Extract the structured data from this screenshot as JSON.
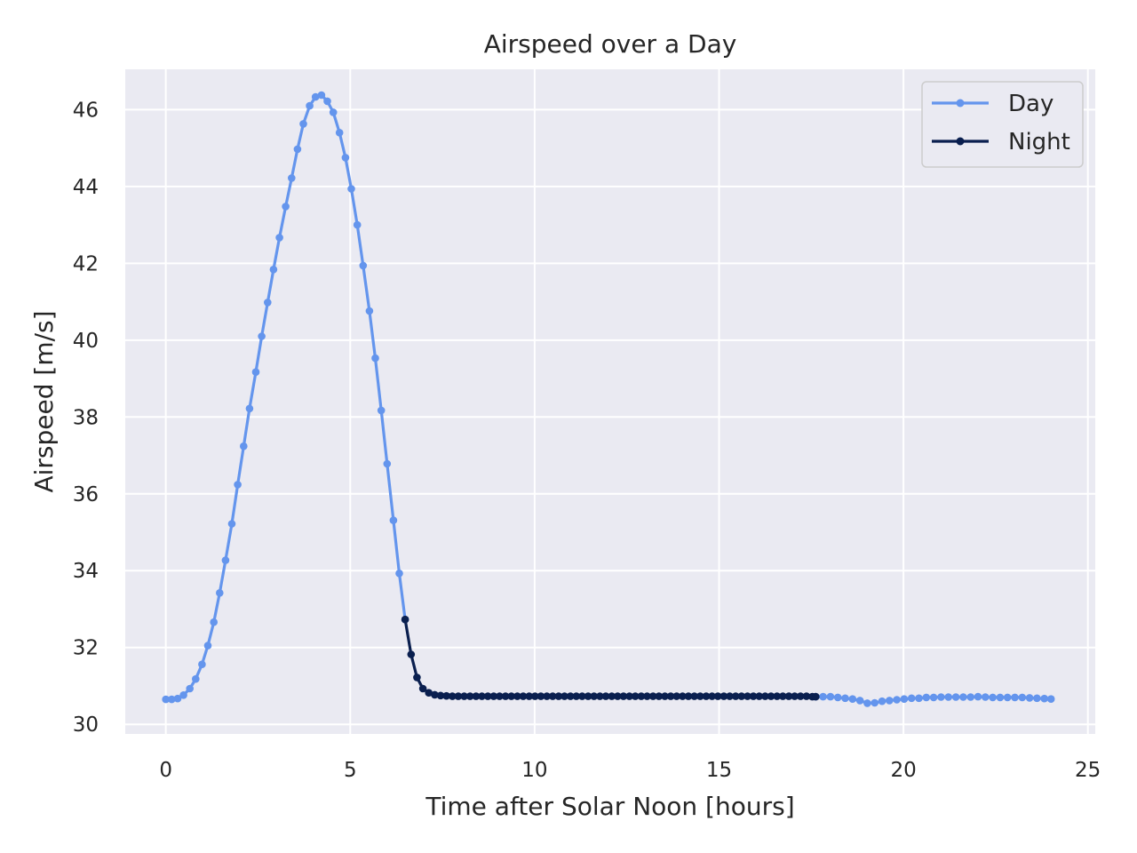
{
  "chart_data": {
    "type": "line",
    "title": "Airspeed over a Day",
    "xlabel": "Time after Solar Noon [hours]",
    "ylabel": "Airspeed [m/s]",
    "xlim": [
      -1.1,
      25.2
    ],
    "ylim": [
      29.75,
      47.05
    ],
    "xticks": [
      0,
      5,
      10,
      15,
      20,
      25
    ],
    "yticks": [
      30,
      32,
      34,
      36,
      38,
      40,
      42,
      44,
      46
    ],
    "grid": true,
    "legend_position": "upper-right",
    "colors": {
      "day": "#6495ED",
      "night": "#0A1F4F",
      "background": "#EAEAF2",
      "grid": "#FFFFFF"
    },
    "series": [
      {
        "name": "Day",
        "segments": [
          {
            "x": [
              0.0,
              0.16,
              0.32,
              0.48,
              0.65,
              0.81,
              0.98,
              1.14,
              1.3,
              1.46,
              1.62,
              1.79,
              1.95,
              2.11,
              2.27,
              2.44,
              2.6,
              2.76,
              2.92,
              3.08,
              3.25,
              3.41,
              3.57,
              3.73,
              3.9,
              4.06,
              4.22,
              4.38,
              4.54,
              4.71,
              4.87,
              5.03,
              5.19,
              5.35,
              5.52,
              5.68,
              5.84,
              6.0,
              6.17,
              6.33,
              6.49
            ],
            "y": [
              30.65,
              30.65,
              30.67,
              30.76,
              30.93,
              31.18,
              31.56,
              32.05,
              32.66,
              33.42,
              34.27,
              35.22,
              36.24,
              37.24,
              38.22,
              39.17,
              40.1,
              40.98,
              41.84,
              42.67,
              43.48,
              44.22,
              44.97,
              45.63,
              46.1,
              46.33,
              46.38,
              46.22,
              45.93,
              45.4,
              44.75,
              43.94,
              43.0,
              41.94,
              40.76,
              39.53,
              38.17,
              36.78,
              35.31,
              33.93,
              32.73
            ]
          },
          {
            "x": [
              17.62,
              17.82,
              18.02,
              18.22,
              18.42,
              18.62,
              18.82,
              19.02,
              19.22,
              19.42,
              19.62,
              19.82,
              20.02,
              20.22,
              20.42,
              20.62,
              20.82,
              21.02,
              21.22,
              21.42,
              21.62,
              21.82,
              22.02,
              22.22,
              22.42,
              22.62,
              22.82,
              23.02,
              23.22,
              23.42,
              23.62,
              23.82,
              24.0
            ],
            "y": [
              30.72,
              30.72,
              30.72,
              30.7,
              30.68,
              30.66,
              30.62,
              30.55,
              30.56,
              30.6,
              30.62,
              30.64,
              30.66,
              30.68,
              30.68,
              30.7,
              30.7,
              30.71,
              30.71,
              30.71,
              30.71,
              30.71,
              30.72,
              30.71,
              30.7,
              30.7,
              30.7,
              30.7,
              30.7,
              30.69,
              30.68,
              30.67,
              30.66
            ]
          }
        ]
      },
      {
        "name": "Night",
        "segments": [
          {
            "x": [
              6.49,
              6.65,
              6.81,
              6.97,
              7.13,
              7.29,
              7.45,
              7.61,
              7.77,
              7.93,
              8.09,
              8.25,
              8.41,
              8.57,
              8.73,
              8.89,
              9.05,
              9.21,
              9.37,
              9.53,
              9.69,
              9.85,
              10.01,
              10.17,
              10.33,
              10.49,
              10.65,
              10.81,
              10.97,
              11.13,
              11.29,
              11.45,
              11.61,
              11.77,
              11.93,
              12.09,
              12.25,
              12.41,
              12.57,
              12.73,
              12.89,
              13.05,
              13.21,
              13.37,
              13.53,
              13.69,
              13.85,
              14.01,
              14.17,
              14.33,
              14.49,
              14.65,
              14.81,
              14.97,
              15.13,
              15.29,
              15.45,
              15.61,
              15.77,
              15.93,
              16.09,
              16.25,
              16.41,
              16.57,
              16.73,
              16.89,
              17.05,
              17.21,
              17.37,
              17.53,
              17.62
            ],
            "y": [
              32.73,
              31.82,
              31.22,
              30.93,
              30.82,
              30.77,
              30.75,
              30.74,
              30.73,
              30.73,
              30.73,
              30.73,
              30.73,
              30.73,
              30.73,
              30.73,
              30.73,
              30.73,
              30.73,
              30.73,
              30.73,
              30.73,
              30.73,
              30.73,
              30.73,
              30.73,
              30.73,
              30.73,
              30.73,
              30.73,
              30.73,
              30.73,
              30.73,
              30.73,
              30.73,
              30.73,
              30.73,
              30.73,
              30.73,
              30.73,
              30.73,
              30.73,
              30.73,
              30.73,
              30.73,
              30.73,
              30.73,
              30.73,
              30.73,
              30.73,
              30.73,
              30.73,
              30.73,
              30.73,
              30.73,
              30.73,
              30.73,
              30.73,
              30.73,
              30.73,
              30.73,
              30.73,
              30.73,
              30.73,
              30.73,
              30.73,
              30.73,
              30.73,
              30.73,
              30.72,
              30.72
            ]
          }
        ]
      }
    ]
  }
}
